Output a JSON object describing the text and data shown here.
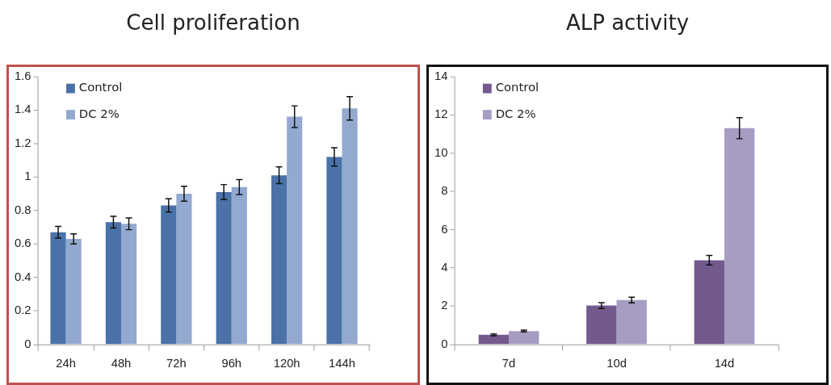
{
  "chart_data": [
    {
      "type": "bar",
      "title": "Cell proliferation",
      "categories": [
        "24h",
        "48h",
        "72h",
        "96h",
        "120h",
        "144h"
      ],
      "series": [
        {
          "name": "Control",
          "color": "#4a72a8",
          "values": [
            0.67,
            0.73,
            0.83,
            0.91,
            1.01,
            1.12
          ],
          "errors": [
            0.035,
            0.035,
            0.04,
            0.045,
            0.05,
            0.055
          ]
        },
        {
          "name": "DC 2%",
          "color": "#93a9d0",
          "values": [
            0.63,
            0.72,
            0.9,
            0.94,
            1.36,
            1.41
          ],
          "errors": [
            0.03,
            0.035,
            0.045,
            0.045,
            0.065,
            0.07
          ]
        }
      ],
      "ylim": [
        0,
        1.6
      ],
      "yticks": [
        0,
        0.2,
        0.4,
        0.6,
        0.8,
        1,
        1.2,
        1.4,
        1.6
      ],
      "grid": false,
      "legend": "top left"
    },
    {
      "type": "bar",
      "title": "ALP activity",
      "categories": [
        "7d",
        "10d",
        "14d"
      ],
      "series": [
        {
          "name": "Control",
          "color": "#725a8f",
          "values": [
            0.5,
            2.03,
            4.4
          ],
          "errors": [
            0.05,
            0.15,
            0.25
          ]
        },
        {
          "name": "DC 2%",
          "color": "#a79cc2",
          "values": [
            0.7,
            2.32,
            11.3
          ],
          "errors": [
            0.05,
            0.15,
            0.55
          ]
        }
      ],
      "ylim": [
        0,
        14
      ],
      "yticks": [
        0,
        2,
        4,
        6,
        8,
        10,
        12,
        14
      ],
      "grid": false,
      "legend": "top left"
    }
  ]
}
